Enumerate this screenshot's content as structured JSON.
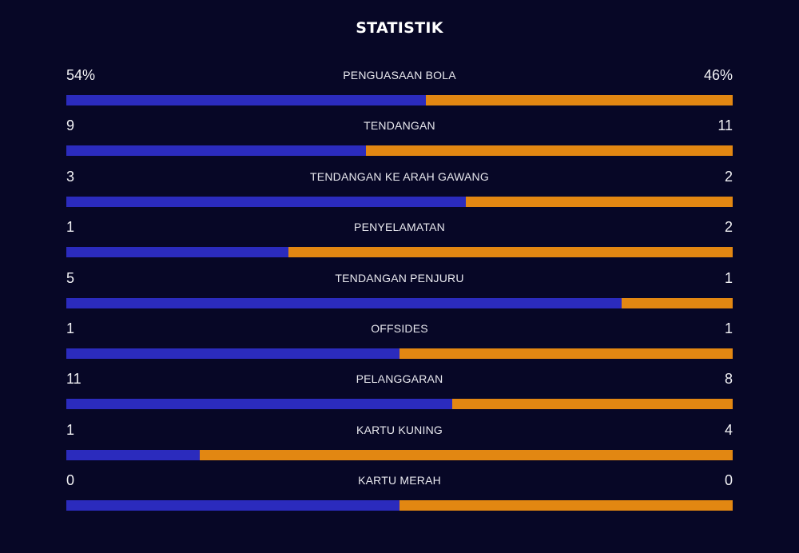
{
  "title": "STATISTIK",
  "colors": {
    "background": "#070726",
    "home": "#2b2bbd",
    "away": "#e28712"
  },
  "stats": [
    {
      "label": "PENGUASAAN BOLA",
      "home": "54%",
      "away": "46%",
      "home_value": 54,
      "away_value": 46
    },
    {
      "label": "TENDANGAN",
      "home": "9",
      "away": "11",
      "home_value": 9,
      "away_value": 11
    },
    {
      "label": "TENDANGAN KE ARAH GAWANG",
      "home": "3",
      "away": "2",
      "home_value": 3,
      "away_value": 2
    },
    {
      "label": "PENYELAMATAN",
      "home": "1",
      "away": "2",
      "home_value": 1,
      "away_value": 2
    },
    {
      "label": "TENDANGAN PENJURU",
      "home": "5",
      "away": "1",
      "home_value": 5,
      "away_value": 1
    },
    {
      "label": "OFFSIDES",
      "home": "1",
      "away": "1",
      "home_value": 1,
      "away_value": 1
    },
    {
      "label": "PELANGGARAN",
      "home": "11",
      "away": "8",
      "home_value": 11,
      "away_value": 8
    },
    {
      "label": "KARTU KUNING",
      "home": "1",
      "away": "4",
      "home_value": 1,
      "away_value": 4
    },
    {
      "label": "KARTU MERAH",
      "home": "0",
      "away": "0",
      "home_value": 0,
      "away_value": 0
    }
  ]
}
